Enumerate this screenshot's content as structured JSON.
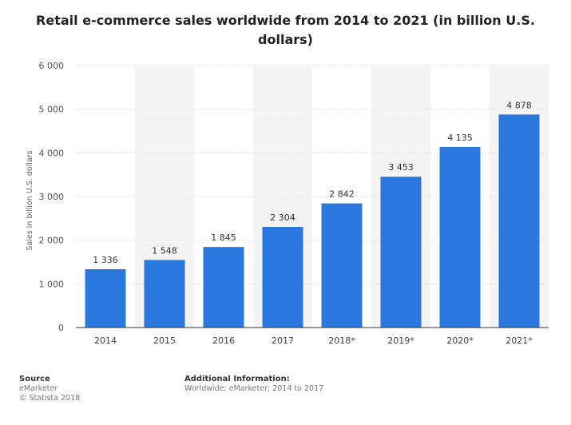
{
  "chart_data": {
    "type": "bar",
    "title": "Retail e-commerce sales worldwide from 2014 to 2021 (in billion U.S. dollars)",
    "xlabel": "",
    "ylabel": "Sales in billion U.S. dollars",
    "categories": [
      "2014",
      "2015",
      "2016",
      "2017",
      "2018*",
      "2019*",
      "2020*",
      "2021*"
    ],
    "values": [
      1336,
      1548,
      1845,
      2304,
      2842,
      3453,
      4135,
      4878
    ],
    "value_labels": [
      "1 336",
      "1 548",
      "1 845",
      "2 304",
      "2 842",
      "3 453",
      "4 135",
      "4 878"
    ],
    "ylim": [
      0,
      6000
    ],
    "yticks": [
      0,
      1000,
      2000,
      3000,
      4000,
      5000,
      6000
    ],
    "ytick_labels": [
      "0",
      "1 000",
      "2 000",
      "3 000",
      "4 000",
      "5 000",
      "6 000"
    ],
    "grid": true,
    "legend": "none"
  },
  "colors": {
    "bar": "#2a77de",
    "band": "#f4f4f4",
    "grid": "#dedede"
  },
  "footer": {
    "source_heading": "Source",
    "source_lines": [
      "eMarketer",
      "© Statista 2018"
    ],
    "info_heading": "Additional Information:",
    "info_text": "Worldwide; eMarketer; 2014 to 2017"
  }
}
